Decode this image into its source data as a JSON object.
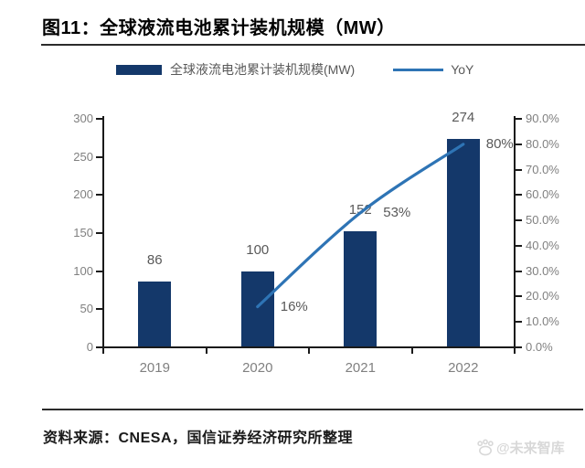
{
  "title": "图11：全球液流电池累计装机规模（MW）",
  "legend": {
    "bar_label": "全球液流电池累计装机规模(MW)",
    "line_label": "YoY"
  },
  "chart_data": {
    "type": "bar",
    "subtype": "bar+line combo",
    "categories": [
      "2019",
      "2020",
      "2021",
      "2022"
    ],
    "series": [
      {
        "name": "全球液流电池累计装机规模(MW)",
        "type": "bar",
        "axis": "left",
        "values": [
          86,
          100,
          152,
          274
        ],
        "data_labels": [
          "86",
          "100",
          "152",
          "274"
        ],
        "color": "#14386A"
      },
      {
        "name": "YoY",
        "type": "line",
        "axis": "right",
        "values": [
          null,
          16,
          53,
          80
        ],
        "data_labels": [
          "",
          "16%",
          "53%",
          "80%"
        ],
        "color": "#2E74B5"
      }
    ],
    "left_axis": {
      "min": 0,
      "max": 300,
      "ticks": [
        0,
        50,
        100,
        150,
        200,
        250,
        300
      ],
      "tick_labels": [
        "0",
        "50",
        "100",
        "150",
        "200",
        "250",
        "300"
      ]
    },
    "right_axis": {
      "min": 0,
      "max": 90,
      "ticks": [
        0,
        10,
        20,
        30,
        40,
        50,
        60,
        70,
        80,
        90
      ],
      "tick_labels": [
        "0.0%",
        "10.0%",
        "20.0%",
        "30.0%",
        "40.0%",
        "50.0%",
        "60.0%",
        "70.0%",
        "80.0%",
        "90.0%"
      ]
    },
    "grid": false,
    "legend_position": "top"
  },
  "source": "资料来源：CNESA，国信证券经济研究所整理",
  "watermark": {
    "icon": "paw-logo",
    "text": "@未来智库"
  },
  "colors": {
    "bar": "#14386A",
    "line": "#2E74B5",
    "axis": "#1A1A1A",
    "tick_label": "#808080",
    "data_label": "#595959",
    "divider": "#2B2B2B",
    "watermark": "#D8D8D8"
  }
}
